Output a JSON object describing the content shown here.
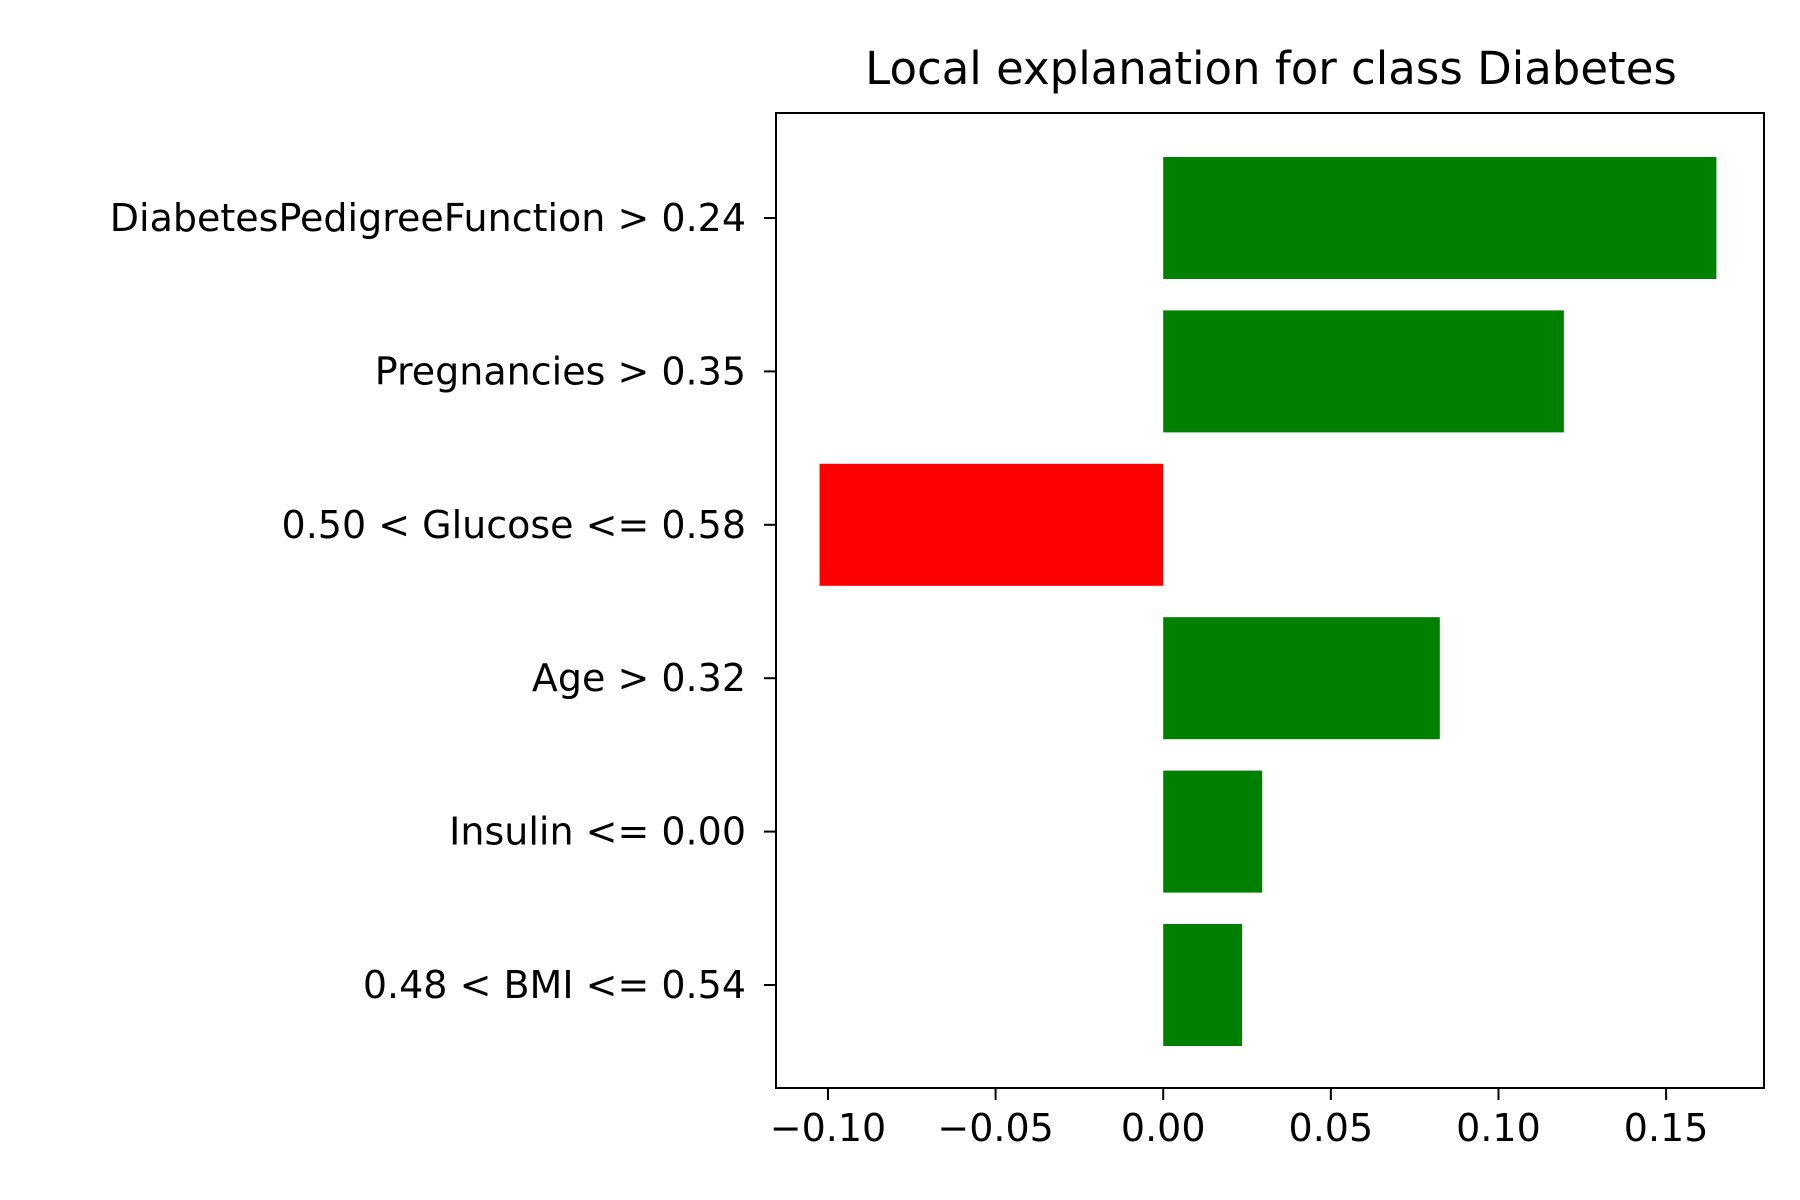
{
  "chart_data": {
    "type": "bar",
    "orientation": "horizontal",
    "title": "Local explanation for class Diabetes",
    "xlabel": "",
    "ylabel": "",
    "categories": [
      "DiabetesPedigreeFunction > 0.24",
      "Pregnancies > 0.35",
      "0.50 < Glucose <= 0.58",
      "Age > 0.32",
      "Insulin <= 0.00",
      "0.48 < BMI <= 0.54"
    ],
    "values": [
      0.165,
      0.1195,
      -0.1025,
      0.0825,
      0.0295,
      0.0235
    ],
    "xlim": [
      -0.1155,
      0.1792
    ],
    "xticks": [
      -0.1,
      -0.05,
      0.0,
      0.05,
      0.1,
      0.15
    ],
    "xtick_labels": [
      "−0.10",
      "−0.05",
      "0.00",
      "0.05",
      "0.10",
      "0.15"
    ],
    "grid": false,
    "legend": "none",
    "colors": {
      "positive": "#008000",
      "negative": "#ff0000",
      "axes": "#000000"
    }
  }
}
